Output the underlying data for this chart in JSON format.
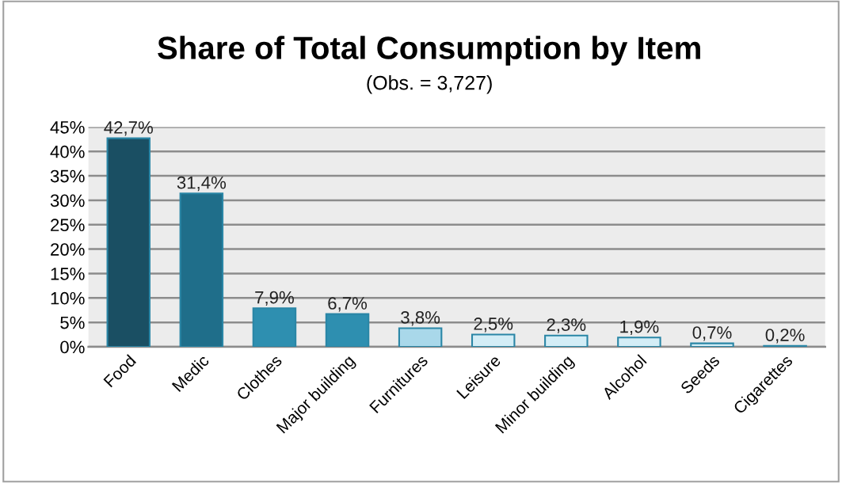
{
  "chart_data": {
    "type": "bar",
    "title": "Share of Total Consumption by Item",
    "subtitle": "(Obs. = 3,727)",
    "categories": [
      "Food",
      "Medic",
      "Clothes",
      "Major building",
      "Furnitures",
      "Leisure",
      "Minor building",
      "Alcohol",
      "Seeds",
      "Cigarettes"
    ],
    "values": [
      42.7,
      31.4,
      7.9,
      6.7,
      3.8,
      2.5,
      2.3,
      1.9,
      0.7,
      0.2
    ],
    "value_labels": [
      "42,7%",
      "31,4%",
      "7,9%",
      "6,7%",
      "3,8%",
      "2,5%",
      "2,3%",
      "1,9%",
      "0,7%",
      "0,2%"
    ],
    "colors": [
      "#1a4f63",
      "#1f6e8a",
      "#2e8fb0",
      "#2e8fb0",
      "#a9d8ea",
      "#d3edf6",
      "#d3edf6",
      "#d3edf6",
      "#d3edf6",
      "#d3edf6"
    ],
    "ylim": [
      0,
      45
    ],
    "yticks": [
      {
        "value": 0,
        "label": "0%"
      },
      {
        "value": 5,
        "label": "5%"
      },
      {
        "value": 10,
        "label": "10%"
      },
      {
        "value": 15,
        "label": "15%"
      },
      {
        "value": 20,
        "label": "20%"
      },
      {
        "value": 25,
        "label": "25%"
      },
      {
        "value": 30,
        "label": "30%"
      },
      {
        "value": 35,
        "label": "35%"
      },
      {
        "value": 40,
        "label": "40%"
      },
      {
        "value": 45,
        "label": "45%"
      }
    ],
    "grid": "y",
    "legend": false
  }
}
